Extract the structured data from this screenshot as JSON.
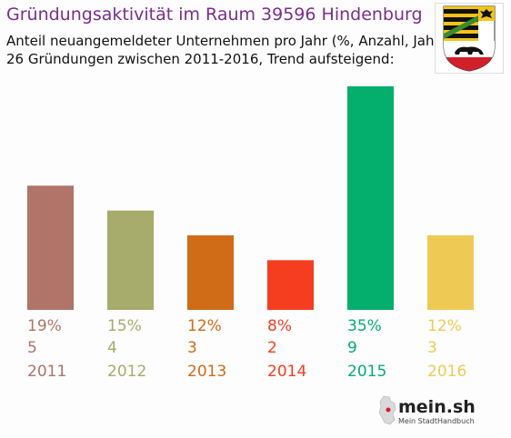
{
  "chart_data": {
    "type": "bar",
    "title": "Gründungsaktivität im Raum 39596 Hindenburg",
    "subtitle_lines": [
      "Anteil neuangemeldeter Unternehmen pro Jahr (%, Anzahl, Jahr)",
      "26 Gründungen zwischen 2011-2016, Trend aufsteigend:"
    ],
    "categories": [
      "2011",
      "2012",
      "2013",
      "2014",
      "2015",
      "2016"
    ],
    "values": [
      5,
      4,
      3,
      2,
      9,
      3
    ],
    "percent_labels": [
      "19%",
      "15%",
      "12%",
      "8%",
      "35%",
      "12%"
    ],
    "colors": [
      "#b07468",
      "#a7ab6b",
      "#d06b17",
      "#f53d20",
      "#04ae6c",
      "#eeca55"
    ],
    "xlabel": "",
    "ylabel": "",
    "ylim": [
      0,
      9
    ],
    "grid": false
  },
  "brand": {
    "name": "mein.sh",
    "tagline": "Mein StadtHandbuch"
  }
}
